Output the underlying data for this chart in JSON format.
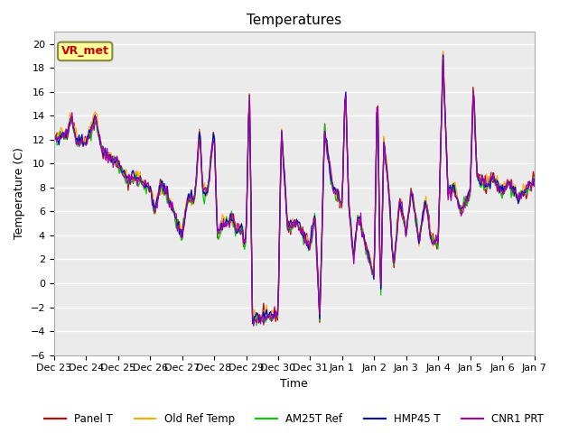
{
  "title": "Temperatures",
  "xlabel": "Time",
  "ylabel": "Temperature (C)",
  "ylim": [
    -6,
    21
  ],
  "yticks": [
    -6,
    -4,
    -2,
    0,
    2,
    4,
    6,
    8,
    10,
    12,
    14,
    16,
    18,
    20
  ],
  "annotation_text": "VR_met",
  "annotation_color": "#cc0000",
  "annotation_bg": "#ffff99",
  "plot_bg": "#ebebeb",
  "series_colors": {
    "Panel T": "#cc0000",
    "Old Ref Temp": "#ffaa00",
    "AM25T Ref": "#00cc00",
    "HMP45 T": "#0000cc",
    "CNR1 PRT": "#aa00aa"
  },
  "x_tick_labels": [
    "Dec 23",
    "Dec 24",
    "Dec 25",
    "Dec 26",
    "Dec 27",
    "Dec 28",
    "Dec 29",
    "Dec 30",
    "Dec 31",
    "Jan 1",
    "Jan 2",
    "Jan 3",
    "Jan 4",
    "Jan 5",
    "Jan 6",
    "Jan 7"
  ],
  "num_days": 15,
  "seed": 42
}
